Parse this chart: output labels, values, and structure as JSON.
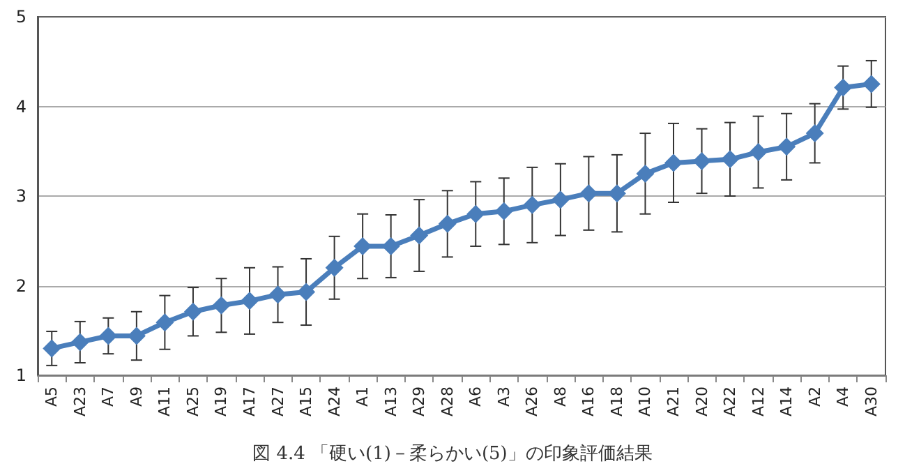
{
  "chart_data": {
    "type": "line",
    "title": "図 4.4 「硬い(1)－柔らかい(5)」の印象評価結果",
    "categories": [
      "A5",
      "A23",
      "A7",
      "A9",
      "A11",
      "A25",
      "A19",
      "A17",
      "A27",
      "A15",
      "A24",
      "A1",
      "A13",
      "A29",
      "A28",
      "A6",
      "A3",
      "A26",
      "A8",
      "A16",
      "A18",
      "A10",
      "A21",
      "A20",
      "A22",
      "A12",
      "A14",
      "A2",
      "A4",
      "A30"
    ],
    "series": [
      {
        "color": "#4a7ebb",
        "values": [
          1.3,
          1.37,
          1.44,
          1.44,
          1.59,
          1.71,
          1.78,
          1.83,
          1.9,
          1.93,
          2.2,
          2.44,
          2.44,
          2.56,
          2.69,
          2.8,
          2.83,
          2.9,
          2.96,
          3.03,
          3.03,
          3.25,
          3.37,
          3.39,
          3.41,
          3.49,
          3.55,
          3.7,
          4.21,
          4.25
        ],
        "errors": [
          0.19,
          0.23,
          0.2,
          0.27,
          0.3,
          0.27,
          0.3,
          0.37,
          0.31,
          0.37,
          0.35,
          0.36,
          0.35,
          0.4,
          0.37,
          0.36,
          0.37,
          0.42,
          0.4,
          0.41,
          0.43,
          0.45,
          0.44,
          0.36,
          0.41,
          0.4,
          0.37,
          0.33,
          0.24,
          0.26
        ]
      }
    ],
    "ylim": [
      1,
      5
    ],
    "yticks": [
      1,
      2,
      3,
      4,
      5
    ],
    "grid": "y",
    "marker": "diamond",
    "line_style": "solid"
  }
}
